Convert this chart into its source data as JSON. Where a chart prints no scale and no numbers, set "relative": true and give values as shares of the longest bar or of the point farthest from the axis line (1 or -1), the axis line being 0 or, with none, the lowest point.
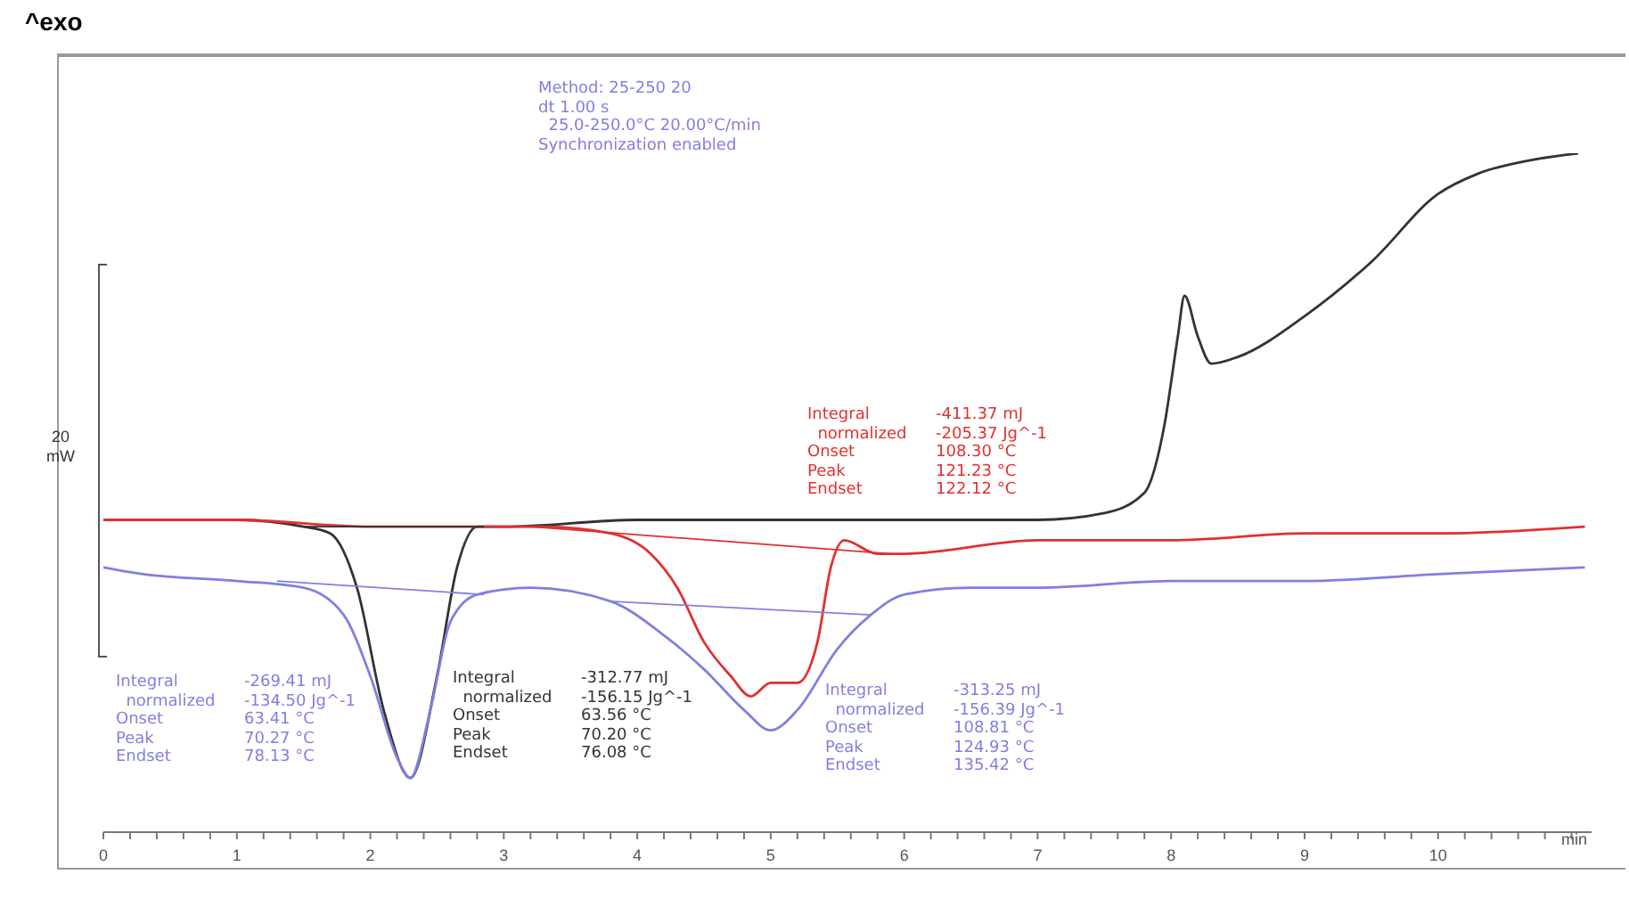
{
  "chart_data": {
    "type": "line",
    "title": "^exo",
    "xlabel": "min",
    "ylabel": "20 mW",
    "relative": true,
    "marker": "none",
    "line_style": "solid",
    "xlim": [
      0,
      11.15
    ],
    "xticks": [
      0,
      {
        "value": 0.2,
        "label": null
      },
      {
        "value": 0.4,
        "label": null
      },
      {
        "value": 0.6,
        "label": null
      },
      {
        "value": 0.8,
        "label": null
      },
      1,
      {
        "value": 1.2,
        "label": null
      },
      {
        "value": 1.4,
        "label": null
      },
      {
        "value": 1.6,
        "label": null
      },
      {
        "value": 1.8,
        "label": null
      },
      2,
      {
        "value": 2.2,
        "label": null
      },
      {
        "value": 2.4,
        "label": null
      },
      {
        "value": 2.6,
        "label": null
      },
      {
        "value": 2.8,
        "label": null
      },
      3,
      {
        "value": 3.2,
        "label": null
      },
      {
        "value": 3.4,
        "label": null
      },
      {
        "value": 3.6,
        "label": null
      },
      {
        "value": 3.8,
        "label": null
      },
      4,
      {
        "value": 4.2,
        "label": null
      },
      {
        "value": 4.4,
        "label": null
      },
      {
        "value": 4.6,
        "label": null
      },
      {
        "value": 4.8,
        "label": null
      },
      5,
      {
        "value": 5.2,
        "label": null
      },
      {
        "value": 5.4,
        "label": null
      },
      {
        "value": 5.6,
        "label": null
      },
      {
        "value": 5.8,
        "label": null
      },
      6,
      {
        "value": 6.2,
        "label": null
      },
      {
        "value": 6.4,
        "label": null
      },
      {
        "value": 6.6,
        "label": null
      },
      {
        "value": 6.8,
        "label": null
      },
      7,
      {
        "value": 7.2,
        "label": null
      },
      {
        "value": 7.4,
        "label": null
      },
      {
        "value": 7.6,
        "label": null
      },
      {
        "value": 7.8,
        "label": null
      },
      8,
      {
        "value": 8.2,
        "label": null
      },
      {
        "value": 8.4,
        "label": null
      },
      {
        "value": 8.6,
        "label": null
      },
      {
        "value": 8.8,
        "label": null
      },
      9,
      {
        "value": 9.2,
        "label": null
      },
      {
        "value": 9.4,
        "label": null
      },
      {
        "value": 9.6,
        "label": null
      },
      {
        "value": 9.8,
        "label": null
      },
      10,
      {
        "value": 10.2,
        "label": null
      },
      {
        "value": 10.4,
        "label": null
      },
      {
        "value": 10.6,
        "label": null
      },
      {
        "value": 10.8,
        "label": null
      },
      {
        "value": 11,
        "label": null
      }
    ],
    "series": [
      {
        "color": "#333333",
        "x": [
          0,
          1,
          1.5,
          1.7,
          1.9,
          2.1,
          2.3,
          2.5,
          2.65,
          2.8,
          3,
          4,
          5,
          6,
          7,
          7.5,
          7.8,
          7.95,
          8.05,
          8.1,
          8.2,
          8.3,
          8.5,
          9,
          9.5,
          10,
          10.3,
          10.7,
          11.05
        ],
        "values": [
          0.46,
          0.46,
          0.45,
          0.44,
          0.36,
          0.18,
          0.08,
          0.23,
          0.39,
          0.45,
          0.45,
          0.46,
          0.46,
          0.46,
          0.46,
          0.47,
          0.5,
          0.6,
          0.73,
          0.79,
          0.73,
          0.69,
          0.7,
          0.76,
          0.84,
          0.94,
          0.97,
          0.99,
          1
        ]
      },
      {
        "color": "#e03030",
        "x": [
          0,
          1,
          2,
          3,
          3.3,
          3.8,
          4.1,
          4.3,
          4.5,
          4.7,
          4.85,
          5,
          5.2,
          5.35,
          5.45,
          5.55,
          5.8,
          6,
          7,
          8,
          9,
          10,
          11.1
        ],
        "values": [
          0.46,
          0.46,
          0.45,
          0.45,
          0.45,
          0.44,
          0.41,
          0.36,
          0.28,
          0.23,
          0.2,
          0.22,
          0.22,
          0.28,
          0.39,
          0.43,
          0.41,
          0.41,
          0.43,
          0.43,
          0.44,
          0.44,
          0.45
        ]
      },
      {
        "color": "#8080e0",
        "x": [
          0,
          0.3,
          1,
          1.5,
          1.8,
          2,
          2.2,
          2.3,
          2.45,
          2.6,
          2.8,
          3.2,
          3.8,
          4.2,
          4.5,
          4.8,
          5,
          5.2,
          5.5,
          5.75,
          6,
          6.5,
          7,
          8,
          9,
          10,
          11.1
        ],
        "values": [
          0.39,
          0.38,
          0.37,
          0.36,
          0.32,
          0.23,
          0.11,
          0.08,
          0.18,
          0.31,
          0.35,
          0.36,
          0.34,
          0.29,
          0.24,
          0.18,
          0.15,
          0.18,
          0.27,
          0.32,
          0.35,
          0.36,
          0.36,
          0.37,
          0.37,
          0.38,
          0.39
        ]
      },
      {
        "color": "#333333",
        "x": [
          1.5,
          2.85
        ],
        "values": [
          0.45,
          0.45
        ]
      },
      {
        "color": "#e03030",
        "x": [
          3.2,
          5.9
        ],
        "values": [
          0.45,
          0.41
        ]
      },
      {
        "color": "#8080e0",
        "x": [
          1.3,
          2.85
        ],
        "values": [
          0.37,
          0.35
        ]
      },
      {
        "color": "#8080e0",
        "x": [
          3.8,
          5.75
        ],
        "values": [
          0.34,
          0.32
        ]
      }
    ],
    "annotations": [
      "Method: 25-250 20\ndt 1.00 s\n  25.0-250.0°C 20.00°C/min\nSynchronization enabled",
      "Integral\t-411.37 mJ\n  normalized\t-205.37 Jg^-1\nOnset\t108.30 °C\nPeak\t121.23 °C\nEndset\t122.12 °C",
      "Integral\t-269.41 mJ\n  normalized\t-134.50 Jg^-1\nOnset\t63.41 °C\nPeak\t70.27 °C\nEndset\t78.13 °C",
      "Integral\t-312.77 mJ\n  normalized\t-156.15 Jg^-1\nOnset\t63.56 °C\nPeak\t70.20 °C\nEndset\t76.08 °C",
      "Integral\t-313.25 mJ\n  normalized\t-156.39 Jg^-1\nOnset\t108.81 °C\nPeak\t124.93 °C\nEndset\t135.42 °C"
    ]
  }
}
